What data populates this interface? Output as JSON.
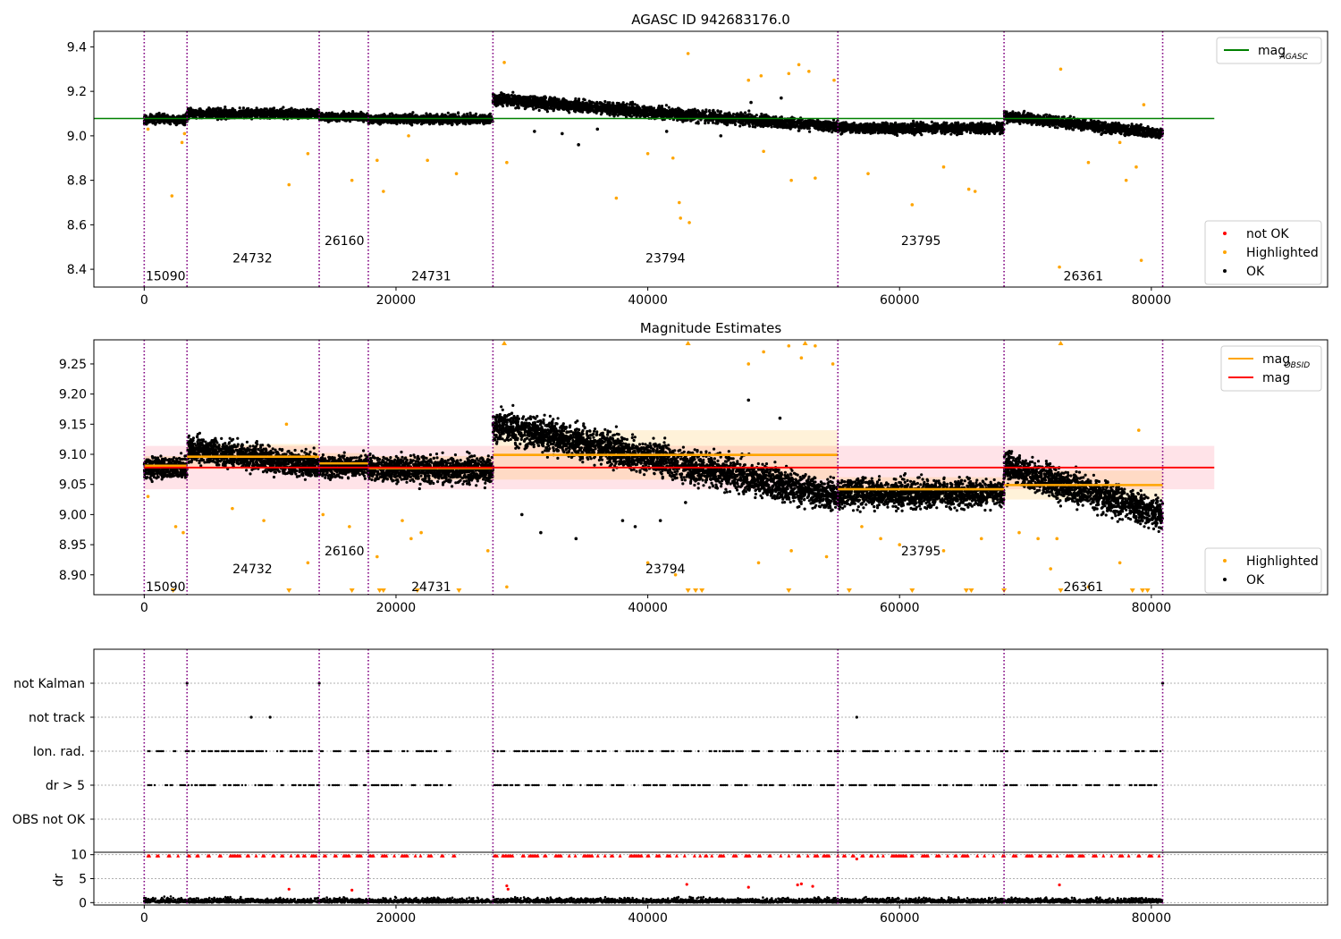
{
  "figure": {
    "background": "#ffffff"
  },
  "colors": {
    "ok": "#000000",
    "highlighted": "#ffa500",
    "not_ok": "#ff0000",
    "agasc_line": "#008000",
    "obsid_line": "#ffa500",
    "mean_line": "#ff0000",
    "obs_separator": "#800080",
    "band": "#ffc0cb"
  },
  "chart_data": [
    {
      "id": "top",
      "type": "scatter",
      "title": "AGASC ID 942683176.0",
      "xlim": [
        -4000,
        94000
      ],
      "ylim": [
        8.32,
        9.47
      ],
      "xticks": [
        0,
        20000,
        40000,
        60000,
        80000
      ],
      "xtick_labels": [
        "0",
        "20000",
        "40000",
        "60000",
        "80000"
      ],
      "yticks": [
        8.4,
        8.6,
        8.8,
        9.0,
        9.2,
        9.4
      ],
      "ytick_labels": [
        "8.4",
        "8.6",
        "8.8",
        "9.0",
        "9.2",
        "9.4"
      ],
      "obs_boundaries": [
        0,
        3400,
        13900,
        17800,
        27700,
        55100,
        68300,
        80900
      ],
      "obsid_labels": [
        {
          "text": "15090",
          "x": 1700,
          "y": 8.37
        },
        {
          "text": "24732",
          "x": 8600,
          "y": 8.45
        },
        {
          "text": "26160",
          "x": 15900,
          "y": 8.53
        },
        {
          "text": "24731",
          "x": 22800,
          "y": 8.37
        },
        {
          "text": "23794",
          "x": 41400,
          "y": 8.45
        },
        {
          "text": "23795",
          "x": 61700,
          "y": 8.53
        },
        {
          "text": "26361",
          "x": 74600,
          "y": 8.37
        }
      ],
      "agasc_mag": 9.078,
      "ok_segments": [
        {
          "x0": 0,
          "x1": 3400,
          "center": 9.075,
          "spread": 0.035
        },
        {
          "x0": 3400,
          "x1": 13900,
          "center": 9.1,
          "spread": 0.035
        },
        {
          "x0": 13900,
          "x1": 17800,
          "center": 9.085,
          "spread": 0.03
        },
        {
          "x0": 17800,
          "x1": 27700,
          "center": 9.075,
          "spread": 0.035
        },
        {
          "x0": 27700,
          "x1": 55100,
          "center_start": 9.165,
          "center_end": 9.04,
          "spread": 0.045
        },
        {
          "x0": 55100,
          "x1": 68300,
          "center": 9.035,
          "spread": 0.04
        },
        {
          "x0": 68300,
          "x1": 80900,
          "center_start": 9.09,
          "center_end": 9.01,
          "spread": 0.04
        }
      ],
      "ok_outliers": [
        {
          "x": 31000,
          "y": 9.02
        },
        {
          "x": 33200,
          "y": 9.01
        },
        {
          "x": 34500,
          "y": 8.96
        },
        {
          "x": 36000,
          "y": 9.03
        },
        {
          "x": 41500,
          "y": 9.02
        },
        {
          "x": 45800,
          "y": 9.0
        },
        {
          "x": 48200,
          "y": 9.15
        },
        {
          "x": 50600,
          "y": 9.17
        }
      ],
      "highlighted": [
        {
          "x": 300,
          "y": 9.03
        },
        {
          "x": 2200,
          "y": 8.73
        },
        {
          "x": 3000,
          "y": 8.97
        },
        {
          "x": 3200,
          "y": 9.01
        },
        {
          "x": 11500,
          "y": 8.78
        },
        {
          "x": 13000,
          "y": 8.92
        },
        {
          "x": 16500,
          "y": 8.8
        },
        {
          "x": 18500,
          "y": 8.89
        },
        {
          "x": 19000,
          "y": 8.75
        },
        {
          "x": 21000,
          "y": 9.0
        },
        {
          "x": 22500,
          "y": 8.89
        },
        {
          "x": 24800,
          "y": 8.83
        },
        {
          "x": 28600,
          "y": 9.33
        },
        {
          "x": 28800,
          "y": 8.88
        },
        {
          "x": 37500,
          "y": 8.72
        },
        {
          "x": 40000,
          "y": 8.92
        },
        {
          "x": 42000,
          "y": 8.9
        },
        {
          "x": 42500,
          "y": 8.7
        },
        {
          "x": 42600,
          "y": 8.63
        },
        {
          "x": 43200,
          "y": 9.37
        },
        {
          "x": 43300,
          "y": 8.61
        },
        {
          "x": 48000,
          "y": 9.25
        },
        {
          "x": 49000,
          "y": 9.27
        },
        {
          "x": 49200,
          "y": 8.93
        },
        {
          "x": 51200,
          "y": 9.28
        },
        {
          "x": 51400,
          "y": 8.8
        },
        {
          "x": 52000,
          "y": 9.32
        },
        {
          "x": 52800,
          "y": 9.29
        },
        {
          "x": 53300,
          "y": 8.81
        },
        {
          "x": 54800,
          "y": 9.25
        },
        {
          "x": 57500,
          "y": 8.83
        },
        {
          "x": 61000,
          "y": 8.69
        },
        {
          "x": 63500,
          "y": 8.86
        },
        {
          "x": 65500,
          "y": 8.76
        },
        {
          "x": 66000,
          "y": 8.75
        },
        {
          "x": 72700,
          "y": 8.41
        },
        {
          "x": 72800,
          "y": 9.3
        },
        {
          "x": 75000,
          "y": 8.88
        },
        {
          "x": 77500,
          "y": 8.97
        },
        {
          "x": 78000,
          "y": 8.8
        },
        {
          "x": 78800,
          "y": 8.86
        },
        {
          "x": 79200,
          "y": 8.44
        },
        {
          "x": 79400,
          "y": 9.14
        }
      ],
      "legend_upper": {
        "entries": [
          {
            "label": "mag",
            "sub": "AGASC",
            "kind": "line",
            "color_key": "agasc_line"
          }
        ]
      },
      "legend_lower": {
        "entries": [
          {
            "label": "not OK",
            "kind": "dot",
            "color_key": "not_ok"
          },
          {
            "label": "Highlighted",
            "kind": "dot",
            "color_key": "highlighted"
          },
          {
            "label": "OK",
            "kind": "dot",
            "color_key": "ok"
          }
        ]
      }
    },
    {
      "id": "mid",
      "type": "scatter",
      "title": "Magnitude Estimates",
      "xlim": [
        -4000,
        94000
      ],
      "ylim": [
        8.867,
        9.29
      ],
      "xticks": [
        0,
        20000,
        40000,
        60000,
        80000
      ],
      "xtick_labels": [
        "0",
        "20000",
        "40000",
        "60000",
        "80000"
      ],
      "yticks": [
        8.9,
        8.95,
        9.0,
        9.05,
        9.1,
        9.15,
        9.2,
        9.25
      ],
      "ytick_labels": [
        "8.90",
        "8.95",
        "9.00",
        "9.05",
        "9.10",
        "9.15",
        "9.20",
        "9.25"
      ],
      "obs_boundaries": [
        0,
        3400,
        13900,
        17800,
        27700,
        55100,
        68300,
        80900
      ],
      "obsid_labels": [
        {
          "text": "15090",
          "x": 1700,
          "y": 8.88
        },
        {
          "text": "24732",
          "x": 8600,
          "y": 8.91
        },
        {
          "text": "26160",
          "x": 15900,
          "y": 8.94
        },
        {
          "text": "24731",
          "x": 22800,
          "y": 8.88
        },
        {
          "text": "23794",
          "x": 41400,
          "y": 8.91
        },
        {
          "text": "23795",
          "x": 61700,
          "y": 8.94
        },
        {
          "text": "26361",
          "x": 74600,
          "y": 8.88
        }
      ],
      "mag_mean": 9.078,
      "mag_band": [
        9.042,
        9.114
      ],
      "obsid_mags": [
        {
          "x0": 0,
          "x1": 3400,
          "mag": 9.081,
          "band": [
            9.065,
            9.097
          ]
        },
        {
          "x0": 3400,
          "x1": 13900,
          "mag": 9.096,
          "band": [
            9.075,
            9.117
          ]
        },
        {
          "x0": 13900,
          "x1": 17800,
          "mag": 9.085,
          "band": [
            9.068,
            9.102
          ]
        },
        {
          "x0": 17800,
          "x1": 27700,
          "mag": 9.077,
          "band": [
            9.057,
            9.097
          ]
        },
        {
          "x0": 27700,
          "x1": 55100,
          "mag": 9.099,
          "band": [
            9.058,
            9.14
          ]
        },
        {
          "x0": 55100,
          "x1": 68300,
          "mag": 9.042,
          "band": [
            9.022,
            9.062
          ]
        },
        {
          "x0": 68300,
          "x1": 80900,
          "mag": 9.049,
          "band": [
            9.025,
            9.073
          ]
        }
      ],
      "ok_segments": [
        {
          "x0": 0,
          "x1": 3400,
          "center": 9.078,
          "spread": 0.03
        },
        {
          "x0": 3400,
          "x1": 13900,
          "center_start": 9.11,
          "center_end": 9.08,
          "spread": 0.035
        },
        {
          "x0": 13900,
          "x1": 17800,
          "center": 9.08,
          "spread": 0.03
        },
        {
          "x0": 17800,
          "x1": 27700,
          "center": 9.075,
          "spread": 0.035
        },
        {
          "x0": 27700,
          "x1": 55100,
          "center_start": 9.15,
          "center_end": 9.03,
          "spread": 0.045
        },
        {
          "x0": 55100,
          "x1": 68300,
          "center": 9.035,
          "spread": 0.04
        },
        {
          "x0": 68300,
          "x1": 80900,
          "center_start": 9.08,
          "center_end": 9.0,
          "spread": 0.045
        }
      ],
      "ok_outliers": [
        {
          "x": 30000,
          "y": 9.0
        },
        {
          "x": 31500,
          "y": 8.97
        },
        {
          "x": 34300,
          "y": 8.96
        },
        {
          "x": 38000,
          "y": 8.99
        },
        {
          "x": 39000,
          "y": 8.98
        },
        {
          "x": 41000,
          "y": 8.99
        },
        {
          "x": 43000,
          "y": 9.02
        },
        {
          "x": 48000,
          "y": 9.19
        },
        {
          "x": 50500,
          "y": 9.16
        }
      ],
      "highlighted": [
        {
          "x": 300,
          "y": 9.03
        },
        {
          "x": 2500,
          "y": 8.98
        },
        {
          "x": 3100,
          "y": 8.97
        },
        {
          "x": 7000,
          "y": 9.01
        },
        {
          "x": 9500,
          "y": 8.99
        },
        {
          "x": 11300,
          "y": 9.15
        },
        {
          "x": 13000,
          "y": 8.92
        },
        {
          "x": 14200,
          "y": 9.0
        },
        {
          "x": 16300,
          "y": 8.98
        },
        {
          "x": 18500,
          "y": 8.93
        },
        {
          "x": 20500,
          "y": 8.99
        },
        {
          "x": 21200,
          "y": 8.96
        },
        {
          "x": 22000,
          "y": 8.97
        },
        {
          "x": 27300,
          "y": 8.94
        },
        {
          "x": 28800,
          "y": 8.88
        },
        {
          "x": 40000,
          "y": 8.92
        },
        {
          "x": 42200,
          "y": 8.9
        },
        {
          "x": 48000,
          "y": 9.25
        },
        {
          "x": 48800,
          "y": 8.92
        },
        {
          "x": 49200,
          "y": 9.27
        },
        {
          "x": 51200,
          "y": 9.28
        },
        {
          "x": 51400,
          "y": 8.94
        },
        {
          "x": 52200,
          "y": 9.26
        },
        {
          "x": 53300,
          "y": 9.28
        },
        {
          "x": 54700,
          "y": 9.25
        },
        {
          "x": 54200,
          "y": 8.93
        },
        {
          "x": 57000,
          "y": 8.98
        },
        {
          "x": 58500,
          "y": 8.96
        },
        {
          "x": 60000,
          "y": 8.95
        },
        {
          "x": 63500,
          "y": 8.94
        },
        {
          "x": 66500,
          "y": 8.96
        },
        {
          "x": 69500,
          "y": 8.97
        },
        {
          "x": 71000,
          "y": 8.96
        },
        {
          "x": 72000,
          "y": 8.91
        },
        {
          "x": 72500,
          "y": 8.96
        },
        {
          "x": 75000,
          "y": 8.88
        },
        {
          "x": 77500,
          "y": 8.92
        },
        {
          "x": 79000,
          "y": 9.14
        }
      ],
      "clipped_top": [
        28600,
        43200,
        52500,
        72800
      ],
      "clipped_bottom": [
        2300,
        11500,
        16500,
        18700,
        19000,
        21700,
        25000,
        43200,
        43800,
        44300,
        51200,
        56000,
        61000,
        65300,
        65700,
        68300,
        72800,
        78500,
        79300,
        79700
      ],
      "legend_upper": {
        "entries": [
          {
            "label": "mag",
            "sub": "OBSID",
            "kind": "line",
            "color_key": "obsid_line"
          },
          {
            "label": "mag",
            "kind": "line",
            "color_key": "mean_line"
          }
        ]
      },
      "legend_lower": {
        "entries": [
          {
            "label": "Highlighted",
            "kind": "dot",
            "color_key": "highlighted"
          },
          {
            "label": "OK",
            "kind": "dot",
            "color_key": "ok"
          }
        ]
      }
    },
    {
      "id": "flags",
      "type": "scatter",
      "xlim": [
        -4000,
        94000
      ],
      "categories": [
        "not Kalman",
        "not track",
        "Ion. rad.",
        "dr > 5",
        "OBS not OK"
      ],
      "obs_boundaries": [
        0,
        3400,
        13900,
        17800,
        27700,
        55100,
        68300,
        80900
      ],
      "flag_ranges": [
        {
          "category": "Ion. rad.",
          "ranges": [
            [
              300,
              25000
            ],
            [
              27800,
              80800
            ]
          ]
        },
        {
          "category": "dr > 5",
          "ranges": [
            [
              300,
              25000
            ],
            [
              27800,
              80800
            ]
          ]
        }
      ],
      "flag_points": [
        {
          "category": "not Kalman",
          "x": 3400
        },
        {
          "category": "not Kalman",
          "x": 13900
        },
        {
          "category": "not Kalman",
          "x": 80900
        },
        {
          "category": "not track",
          "x": 8500
        },
        {
          "category": "not track",
          "x": 10000
        },
        {
          "category": "not track",
          "x": 56600
        }
      ]
    },
    {
      "id": "dr",
      "type": "scatter",
      "ylabel": "dr",
      "xlim": [
        -4000,
        94000
      ],
      "ylim": [
        -0.5,
        10.5
      ],
      "xticks": [
        0,
        20000,
        40000,
        60000,
        80000
      ],
      "xtick_labels": [
        "0",
        "20000",
        "40000",
        "60000",
        "80000"
      ],
      "yticks": [
        0,
        5,
        10
      ],
      "ytick_labels": [
        "0",
        "5",
        "10"
      ],
      "obs_boundaries": [
        0,
        3400,
        13900,
        17800,
        27700,
        55100,
        68300,
        80900
      ],
      "ok_range": [
        0,
        80900
      ],
      "ok_level": [
        0,
        1.5
      ],
      "not_ok_top": 9.8,
      "not_ok_points": [
        {
          "x": 11500,
          "y": 2.8
        },
        {
          "x": 16500,
          "y": 2.6
        },
        {
          "x": 28800,
          "y": 3.5
        },
        {
          "x": 28900,
          "y": 2.8
        },
        {
          "x": 43100,
          "y": 3.8
        },
        {
          "x": 48000,
          "y": 3.2
        },
        {
          "x": 51900,
          "y": 3.7
        },
        {
          "x": 52200,
          "y": 3.9
        },
        {
          "x": 53100,
          "y": 3.4
        },
        {
          "x": 72700,
          "y": 3.7
        },
        {
          "x": 56600,
          "y": 9.1
        }
      ]
    }
  ]
}
